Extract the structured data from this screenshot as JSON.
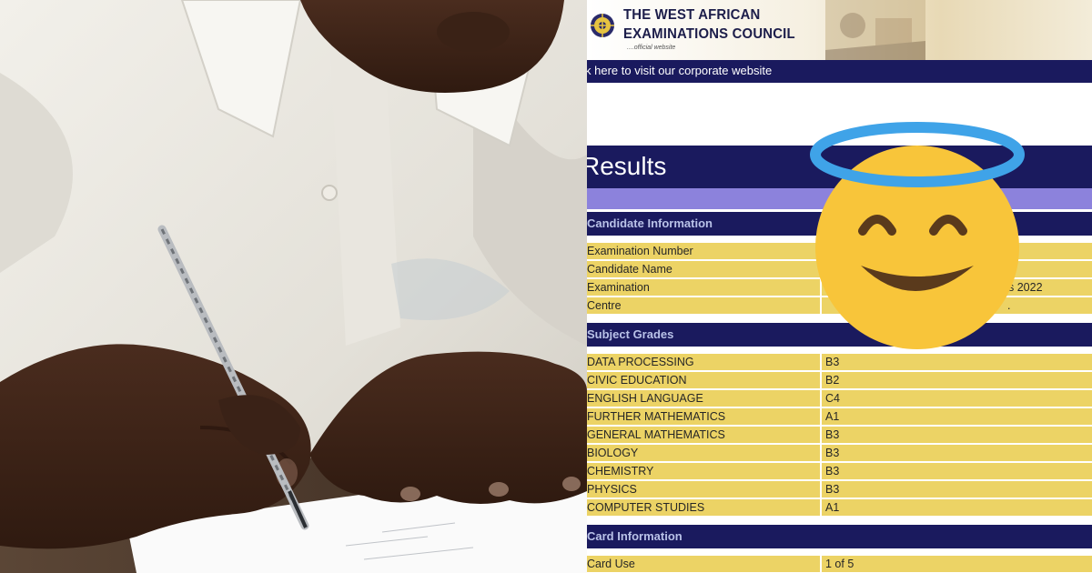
{
  "waec": {
    "title_line1": "THE WEST AFRICAN",
    "title_line2": "EXAMINATIONS COUNCIL",
    "subtitle": "....official website",
    "corporate_link": "k here to visit our corporate website",
    "page_title": "Results"
  },
  "candidate_section": {
    "title": "Candidate Information",
    "rows": [
      {
        "label": "Examination Number",
        "value": ""
      },
      {
        "label": "Candidate Name",
        "value": ""
      },
      {
        "label": "Examination",
        "value": "s 2022"
      },
      {
        "label": "Centre",
        "value": "."
      }
    ]
  },
  "grades_section": {
    "title": "Subject Grades",
    "rows": [
      {
        "subject": "DATA PROCESSING",
        "grade": "B3"
      },
      {
        "subject": "CIVIC EDUCATION",
        "grade": "B2"
      },
      {
        "subject": "ENGLISH LANGUAGE",
        "grade": "C4"
      },
      {
        "subject": "FURTHER MATHEMATICS",
        "grade": "A1"
      },
      {
        "subject": "GENERAL MATHEMATICS",
        "grade": "B3"
      },
      {
        "subject": "BIOLOGY",
        "grade": "B3"
      },
      {
        "subject": "CHEMISTRY",
        "grade": "B3"
      },
      {
        "subject": "PHYSICS",
        "grade": "B3"
      },
      {
        "subject": "COMPUTER STUDIES",
        "grade": "A1"
      }
    ]
  },
  "card_section": {
    "title": "Card Information",
    "rows": [
      {
        "label": "Card Use",
        "value": "1 of 5"
      }
    ]
  },
  "emoji": {
    "name": "smiling-face-with-halo-icon",
    "face_color": "#f8c53a",
    "halo_color": "#3fa3e8"
  },
  "colors": {
    "navy": "#1a1a5e",
    "row_yellow": "#ecd365",
    "lavender": "#8c82dc"
  }
}
